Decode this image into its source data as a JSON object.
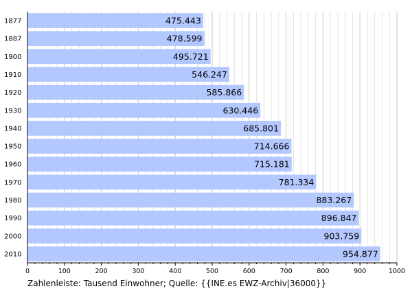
{
  "chart_data": {
    "type": "bar",
    "orientation": "horizontal",
    "categories": [
      "1877",
      "1887",
      "1900",
      "1910",
      "1920",
      "1930",
      "1940",
      "1950",
      "1960",
      "1970",
      "1980",
      "1990",
      "2000",
      "2010"
    ],
    "values": [
      475.443,
      478.599,
      495.721,
      546.247,
      585.866,
      630.446,
      685.801,
      714.666,
      715.181,
      781.334,
      883.267,
      896.847,
      903.759,
      954.877
    ],
    "value_labels": [
      "475.443",
      "478.599",
      "495.721",
      "546.247",
      "585.866",
      "630.446",
      "685.801",
      "714.666",
      "715.181",
      "781.334",
      "883.267",
      "896.847",
      "903.759",
      "954.877"
    ],
    "x_ticks": [
      "0",
      "100",
      "200",
      "300",
      "400",
      "500",
      "600",
      "700",
      "800",
      "900",
      "1000"
    ],
    "xlim": [
      0,
      1000
    ],
    "grid": true,
    "bar_color": "#b3c8ff",
    "caption": "Zahlenleiste: Tausend Einwohner; Quelle: {{INE.es EWZ-Archiv|36000}}"
  }
}
